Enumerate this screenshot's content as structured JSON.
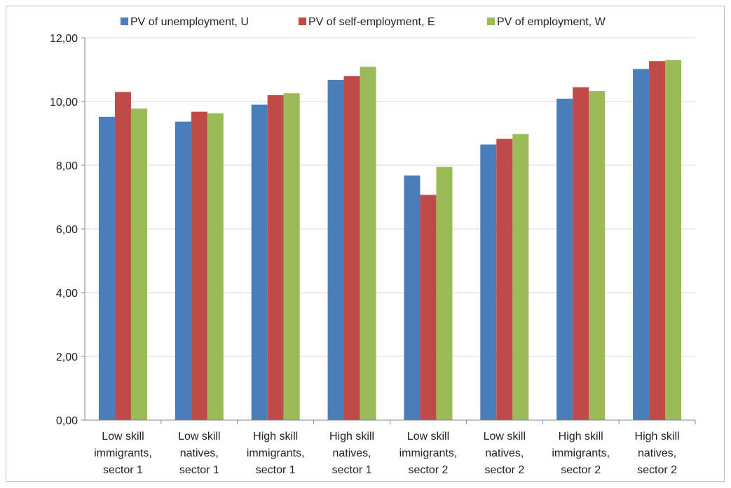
{
  "chart_data": {
    "type": "bar",
    "categories": [
      [
        "Low skill",
        "immigrants,",
        "sector 1"
      ],
      [
        "Low skill",
        "natives,",
        "sector 1"
      ],
      [
        "High skill",
        "immigrants,",
        "sector 1"
      ],
      [
        "High skill",
        "natives,",
        "sector 1"
      ],
      [
        "Low skill",
        "immigrants,",
        "sector 2"
      ],
      [
        "Low skill",
        "natives,",
        "sector 2"
      ],
      [
        "High skill",
        "immigrants,",
        "sector 2"
      ],
      [
        "High skill",
        "natives,",
        "sector 2"
      ]
    ],
    "series": [
      {
        "name": "PV of unemployment, U",
        "color": "#4a7ebb",
        "values": [
          9.52,
          9.37,
          9.9,
          10.68,
          7.68,
          8.65,
          10.09,
          11.02
        ]
      },
      {
        "name": "PV of self-employment, E",
        "color": "#be4b48",
        "values": [
          10.3,
          9.68,
          10.2,
          10.8,
          7.07,
          8.83,
          10.45,
          11.27
        ]
      },
      {
        "name": "PV of employment, W",
        "color": "#9bbb59",
        "values": [
          9.78,
          9.63,
          10.26,
          11.09,
          7.95,
          8.98,
          10.33,
          11.3
        ]
      }
    ],
    "ylim": [
      0,
      12
    ],
    "yticks": [
      "0,00",
      "2,00",
      "4,00",
      "6,00",
      "8,00",
      "10,00",
      "12,00"
    ],
    "ytick_values": [
      0,
      2,
      4,
      6,
      8,
      10,
      12
    ],
    "grid": true,
    "legend_position": "top"
  }
}
